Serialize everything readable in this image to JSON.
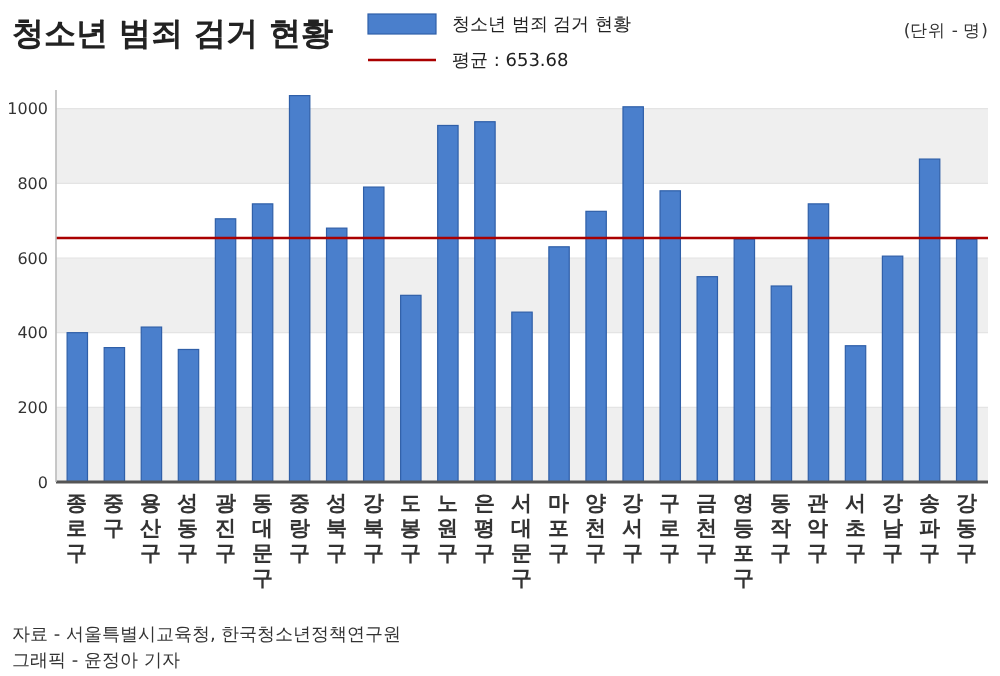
{
  "chart_data": {
    "type": "bar",
    "title": "청소년 범죄 검거 현황",
    "categories": [
      "종로구",
      "중구",
      "용산구",
      "성동구",
      "광진구",
      "동대문구",
      "중랑구",
      "성북구",
      "강북구",
      "도봉구",
      "노원구",
      "은평구",
      "서대문구",
      "마포구",
      "양천구",
      "강서구",
      "구로구",
      "금천구",
      "영등포구",
      "동작구",
      "관악구",
      "서초구",
      "강남구",
      "송파구",
      "강동구"
    ],
    "series": [
      {
        "name": "청소년 범죄 검거 현황",
        "color": "#4a7fcc",
        "values": [
          400,
          360,
          415,
          355,
          705,
          745,
          1035,
          680,
          790,
          500,
          955,
          965,
          455,
          630,
          725,
          1005,
          780,
          550,
          650,
          525,
          745,
          365,
          605,
          865,
          650
        ]
      }
    ],
    "ylim": [
      0,
      1050
    ],
    "yticks": [
      0,
      200,
      400,
      600,
      800,
      1000
    ],
    "grid": "y",
    "legend": "top",
    "ref_lines": [
      {
        "axis": "y",
        "value": 653.68,
        "label": "평균 : 653.68",
        "color": "#aa0000"
      }
    ],
    "annotations": [
      "(단위 - 명)",
      "자료 - 서울특별시교육청, 한국청소년정책연구원",
      "그래픽 - 윤정아 기자"
    ]
  }
}
